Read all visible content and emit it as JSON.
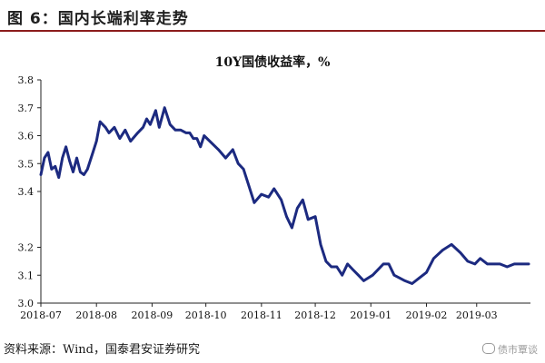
{
  "figure": {
    "title": "图 6：国内长端利率走势",
    "source": "资料来源：Wind，国泰君安证券研究",
    "watermark": "债市覃谈"
  },
  "chart_data": {
    "type": "line",
    "title": "10Y国债收益率，%",
    "xlabel": "",
    "ylabel": "",
    "ylim": [
      3.0,
      3.8
    ],
    "yticks": [
      3.0,
      3.1,
      3.2,
      3.4,
      3.5,
      3.6,
      3.7,
      3.8
    ],
    "ytick_labels": [
      "3.0",
      "3.1",
      "3.2",
      "3.4",
      "3.5",
      "3.6",
      "3.7",
      "3.8"
    ],
    "xlim": [
      "2018-07-01",
      "2019-03-31"
    ],
    "xticks": [
      "2018-07",
      "2018-08",
      "2018-09",
      "2018-10",
      "2018-11",
      "2018-12",
      "2019-01",
      "2019-02",
      "2019-03"
    ],
    "grid": false,
    "color": "#1c2a80",
    "series": [
      {
        "name": "",
        "x": [
          "2018-07-01",
          "2018-07-03",
          "2018-07-05",
          "2018-07-07",
          "2018-07-09",
          "2018-07-11",
          "2018-07-13",
          "2018-07-15",
          "2018-07-17",
          "2018-07-19",
          "2018-07-21",
          "2018-07-23",
          "2018-07-25",
          "2018-07-27",
          "2018-07-30",
          "2018-08-01",
          "2018-08-03",
          "2018-08-06",
          "2018-08-08",
          "2018-08-11",
          "2018-08-14",
          "2018-08-17",
          "2018-08-20",
          "2018-08-24",
          "2018-08-27",
          "2018-08-29",
          "2018-08-31",
          "2018-09-03",
          "2018-09-05",
          "2018-09-08",
          "2018-09-11",
          "2018-09-14",
          "2018-09-17",
          "2018-09-20",
          "2018-09-22",
          "2018-09-24",
          "2018-09-26",
          "2018-09-28",
          "2018-09-30",
          "2018-10-08",
          "2018-10-12",
          "2018-10-16",
          "2018-10-19",
          "2018-10-22",
          "2018-10-25",
          "2018-10-28",
          "2018-11-01",
          "2018-11-05",
          "2018-11-08",
          "2018-11-12",
          "2018-11-15",
          "2018-11-18",
          "2018-11-21",
          "2018-11-24",
          "2018-11-27",
          "2018-12-01",
          "2018-12-04",
          "2018-12-07",
          "2018-12-10",
          "2018-12-13",
          "2018-12-16",
          "2018-12-19",
          "2018-12-22",
          "2018-12-25",
          "2018-12-28",
          "2019-01-02",
          "2019-01-05",
          "2019-01-08",
          "2019-01-11",
          "2019-01-14",
          "2019-01-17",
          "2019-01-20",
          "2019-01-24",
          "2019-01-28",
          "2019-02-01",
          "2019-02-05",
          "2019-02-10",
          "2019-02-15",
          "2019-02-20",
          "2019-02-24",
          "2019-02-28",
          "2019-03-03",
          "2019-03-07",
          "2019-03-11",
          "2019-03-14",
          "2019-03-18",
          "2019-03-22",
          "2019-03-26",
          "2019-03-30"
        ],
        "values": [
          3.46,
          3.52,
          3.54,
          3.48,
          3.49,
          3.45,
          3.52,
          3.56,
          3.51,
          3.47,
          3.52,
          3.47,
          3.46,
          3.48,
          3.54,
          3.58,
          3.65,
          3.63,
          3.61,
          3.63,
          3.59,
          3.62,
          3.58,
          3.61,
          3.63,
          3.66,
          3.64,
          3.69,
          3.63,
          3.7,
          3.64,
          3.62,
          3.62,
          3.61,
          3.61,
          3.59,
          3.59,
          3.56,
          3.6,
          3.55,
          3.52,
          3.55,
          3.5,
          3.48,
          3.42,
          3.36,
          3.39,
          3.38,
          3.41,
          3.37,
          3.31,
          3.27,
          3.34,
          3.37,
          3.3,
          3.31,
          3.21,
          3.15,
          3.13,
          3.13,
          3.1,
          3.14,
          3.12,
          3.1,
          3.08,
          3.1,
          3.12,
          3.14,
          3.14,
          3.1,
          3.09,
          3.08,
          3.07,
          3.09,
          3.11,
          3.16,
          3.19,
          3.21,
          3.18,
          3.15,
          3.14,
          3.16,
          3.14,
          3.14,
          3.14,
          3.13,
          3.14,
          3.14,
          3.14
        ]
      }
    ]
  }
}
